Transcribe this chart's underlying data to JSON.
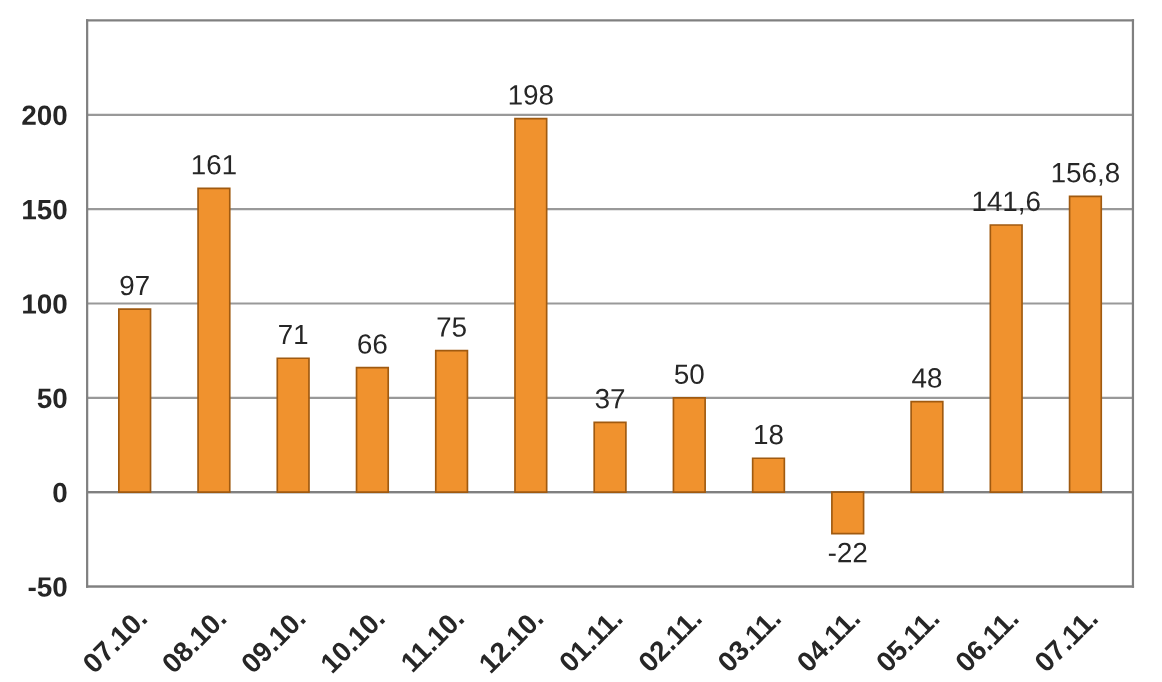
{
  "chart_data": {
    "type": "bar",
    "categories": [
      "07.10.",
      "08.10.",
      "09.10.",
      "10.10.",
      "11.10.",
      "12.10.",
      "01.11.",
      "02.11.",
      "03.11.",
      "04.11.",
      "05.11.",
      "06.11.",
      "07.11."
    ],
    "values": [
      97,
      161,
      71,
      66,
      75,
      198,
      37,
      50,
      18,
      -22,
      48,
      141.6,
      156.8
    ],
    "value_labels": [
      "97",
      "161",
      "71",
      "66",
      "75",
      "198",
      "37",
      "50",
      "18",
      "-22",
      "48",
      "141,6",
      "156,8"
    ],
    "color": "#f0922e",
    "ylim": [
      -50,
      250
    ],
    "yticks": [
      -50,
      0,
      50,
      100,
      150,
      200
    ],
    "grid": "y"
  }
}
